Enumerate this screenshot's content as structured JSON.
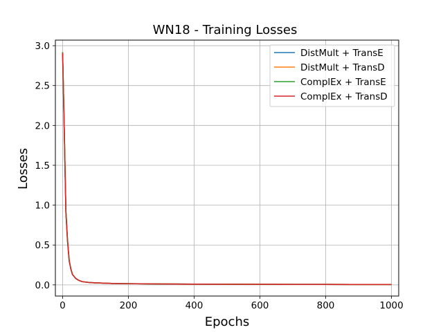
{
  "chart_data": {
    "type": "line",
    "title": "WN18 - Training Losses",
    "xlabel": "Epochs",
    "ylabel": "Losses",
    "xlim": [
      -22,
      1022
    ],
    "ylim": [
      -0.14,
      3.07
    ],
    "xticks": [
      0,
      200,
      400,
      600,
      800,
      1000
    ],
    "yticks": [
      0.0,
      0.5,
      1.0,
      1.5,
      2.0,
      2.5,
      3.0
    ],
    "xtick_labels": [
      "0",
      "200",
      "400",
      "600",
      "800",
      "1000"
    ],
    "ytick_labels": [
      "0.0",
      "0.5",
      "1.0",
      "1.5",
      "2.0",
      "2.5",
      "3.0"
    ],
    "grid": true,
    "legend_position": "top-right",
    "x": [
      0,
      5,
      10,
      15,
      20,
      25,
      30,
      40,
      50,
      60,
      80,
      100,
      150,
      200,
      300,
      400,
      500,
      600,
      700,
      800,
      900,
      1000
    ],
    "series": [
      {
        "name": "DistMult + TransE",
        "color": "#1f77b4",
        "values": [
          2.91,
          1.95,
          0.92,
          0.55,
          0.31,
          0.2,
          0.13,
          0.08,
          0.055,
          0.04,
          0.03,
          0.025,
          0.018,
          0.015,
          0.011,
          0.009,
          0.008,
          0.007,
          0.006,
          0.006,
          0.005,
          0.005
        ]
      },
      {
        "name": "DistMult + TransD",
        "color": "#ff7f0e",
        "values": [
          2.9,
          1.93,
          0.9,
          0.54,
          0.3,
          0.2,
          0.13,
          0.08,
          0.055,
          0.04,
          0.03,
          0.025,
          0.018,
          0.015,
          0.011,
          0.009,
          0.008,
          0.007,
          0.006,
          0.006,
          0.005,
          0.005
        ]
      },
      {
        "name": "ComplEx + TransE",
        "color": "#2ca02c",
        "values": [
          2.92,
          1.96,
          0.93,
          0.56,
          0.31,
          0.2,
          0.13,
          0.08,
          0.055,
          0.04,
          0.03,
          0.025,
          0.018,
          0.015,
          0.011,
          0.009,
          0.008,
          0.007,
          0.006,
          0.006,
          0.005,
          0.005
        ]
      },
      {
        "name": "ComplEx + TransD",
        "color": "#d62728",
        "values": [
          2.91,
          1.94,
          0.91,
          0.55,
          0.3,
          0.2,
          0.13,
          0.08,
          0.055,
          0.04,
          0.03,
          0.025,
          0.018,
          0.015,
          0.011,
          0.009,
          0.008,
          0.007,
          0.006,
          0.006,
          0.005,
          0.005
        ]
      }
    ]
  }
}
